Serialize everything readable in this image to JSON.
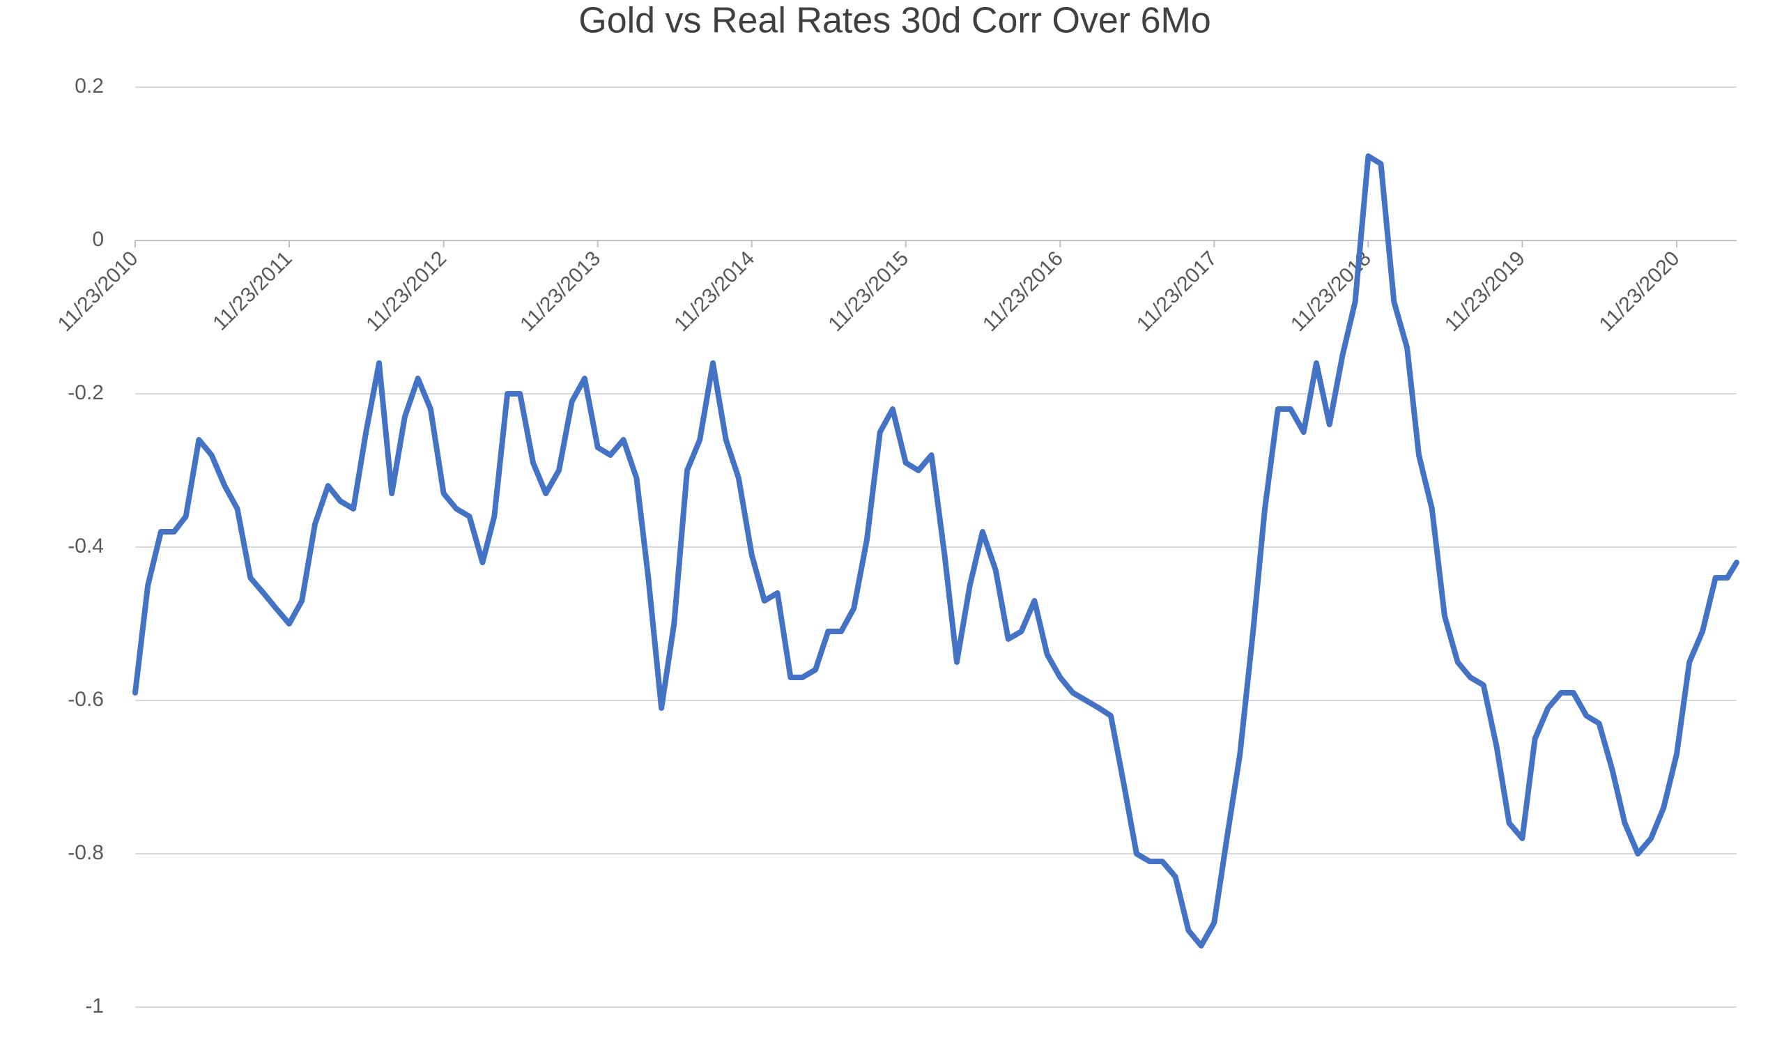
{
  "chart_data": {
    "type": "line",
    "title": "Gold vs Real Rates 30d Corr Over 6Mo",
    "x": [
      "2010-11-23",
      "2010-12-23",
      "2011-01-23",
      "2011-02-23",
      "2011-03-23",
      "2011-04-23",
      "2011-05-23",
      "2011-06-23",
      "2011-07-23",
      "2011-08-23",
      "2011-09-23",
      "2011-10-23",
      "2011-11-23",
      "2011-12-23",
      "2012-01-23",
      "2012-02-23",
      "2012-03-23",
      "2012-04-23",
      "2012-05-23",
      "2012-06-23",
      "2012-07-23",
      "2012-08-23",
      "2012-09-23",
      "2012-10-23",
      "2012-11-23",
      "2012-12-23",
      "2013-01-23",
      "2013-02-23",
      "2013-03-23",
      "2013-04-23",
      "2013-05-23",
      "2013-06-23",
      "2013-07-23",
      "2013-08-23",
      "2013-09-23",
      "2013-10-23",
      "2013-11-23",
      "2013-12-23",
      "2014-01-23",
      "2014-02-23",
      "2014-03-23",
      "2014-04-23",
      "2014-05-23",
      "2014-06-23",
      "2014-07-23",
      "2014-08-23",
      "2014-09-23",
      "2014-10-23",
      "2014-11-23",
      "2014-12-23",
      "2015-01-23",
      "2015-02-23",
      "2015-03-23",
      "2015-04-23",
      "2015-05-23",
      "2015-06-23",
      "2015-07-23",
      "2015-08-23",
      "2015-09-23",
      "2015-10-23",
      "2015-11-23",
      "2015-12-23",
      "2016-01-23",
      "2016-02-23",
      "2016-03-23",
      "2016-04-23",
      "2016-05-23",
      "2016-06-23",
      "2016-07-23",
      "2016-08-23",
      "2016-09-23",
      "2016-10-23",
      "2016-11-23",
      "2016-12-23",
      "2017-01-23",
      "2017-02-23",
      "2017-03-23",
      "2017-04-23",
      "2017-05-23",
      "2017-06-23",
      "2017-07-23",
      "2017-08-23",
      "2017-09-23",
      "2017-10-23",
      "2017-11-23",
      "2017-12-23",
      "2018-01-23",
      "2018-02-23",
      "2018-03-23",
      "2018-04-23",
      "2018-05-23",
      "2018-06-23",
      "2018-07-23",
      "2018-08-23",
      "2018-09-23",
      "2018-10-23",
      "2018-11-23",
      "2018-12-23",
      "2019-01-23",
      "2019-02-23",
      "2019-03-23",
      "2019-04-23",
      "2019-05-23",
      "2019-06-23",
      "2019-07-23",
      "2019-08-23",
      "2019-09-23",
      "2019-10-23",
      "2019-11-23",
      "2019-12-23",
      "2020-01-23",
      "2020-02-23",
      "2020-03-23",
      "2020-04-23",
      "2020-05-23",
      "2020-06-23",
      "2020-07-23",
      "2020-08-23",
      "2020-09-23",
      "2020-10-23",
      "2020-11-23",
      "2020-12-23",
      "2021-01-23",
      "2021-02-23",
      "2021-03-23",
      "2021-04-14"
    ],
    "series": [
      {
        "name": "Gold vs Real Rates 30d Corr",
        "color": "#4472c4",
        "values": [
          -0.59,
          -0.45,
          -0.38,
          -0.38,
          -0.36,
          -0.26,
          -0.28,
          -0.32,
          -0.35,
          -0.44,
          -0.46,
          -0.48,
          -0.5,
          -0.47,
          -0.37,
          -0.32,
          -0.34,
          -0.35,
          -0.25,
          -0.16,
          -0.33,
          -0.23,
          -0.18,
          -0.22,
          -0.33,
          -0.35,
          -0.36,
          -0.42,
          -0.36,
          -0.2,
          -0.2,
          -0.29,
          -0.33,
          -0.3,
          -0.21,
          -0.18,
          -0.27,
          -0.28,
          -0.26,
          -0.31,
          -0.44,
          -0.61,
          -0.5,
          -0.3,
          -0.26,
          -0.16,
          -0.26,
          -0.31,
          -0.41,
          -0.47,
          -0.46,
          -0.57,
          -0.57,
          -0.56,
          -0.51,
          -0.51,
          -0.48,
          -0.39,
          -0.25,
          -0.22,
          -0.29,
          -0.3,
          -0.28,
          -0.41,
          -0.55,
          -0.45,
          -0.38,
          -0.43,
          -0.52,
          -0.51,
          -0.47,
          -0.54,
          -0.57,
          -0.59,
          -0.6,
          -0.61,
          -0.62,
          -0.71,
          -0.8,
          -0.81,
          -0.81,
          -0.83,
          -0.9,
          -0.92,
          -0.89,
          -0.78,
          -0.67,
          -0.51,
          -0.35,
          -0.22,
          -0.22,
          -0.25,
          -0.16,
          -0.24,
          -0.15,
          -0.08,
          0.11,
          0.1,
          -0.08,
          -0.14,
          -0.28,
          -0.35,
          -0.49,
          -0.55,
          -0.57,
          -0.58,
          -0.66,
          -0.76,
          -0.78,
          -0.65,
          -0.61,
          -0.59,
          -0.59,
          -0.62,
          -0.63,
          -0.69,
          -0.76,
          -0.8,
          -0.78,
          -0.74,
          -0.67,
          -0.55,
          -0.51,
          -0.44,
          -0.44,
          -0.42
        ]
      }
    ],
    "xlim": [
      "2010-11-23",
      "2021-04-14"
    ],
    "xticks": [
      {
        "value": "2010-11-23",
        "label": "11/23/2010"
      },
      {
        "value": "2011-11-23",
        "label": "11/23/2011"
      },
      {
        "value": "2012-11-23",
        "label": "11/23/2012"
      },
      {
        "value": "2013-11-23",
        "label": "11/23/2013"
      },
      {
        "value": "2014-11-23",
        "label": "11/23/2014"
      },
      {
        "value": "2015-11-23",
        "label": "11/23/2015"
      },
      {
        "value": "2016-11-23",
        "label": "11/23/2016"
      },
      {
        "value": "2017-11-23",
        "label": "11/23/2017"
      },
      {
        "value": "2018-11-23",
        "label": "11/23/2018"
      },
      {
        "value": "2019-11-23",
        "label": "11/23/2019"
      },
      {
        "value": "2020-11-23",
        "label": "11/23/2020"
      }
    ],
    "ylim": [
      -1,
      0.2
    ],
    "yticks": [
      -1,
      -0.8,
      -0.6,
      -0.4,
      -0.2,
      0,
      0.2
    ],
    "grid": true
  }
}
